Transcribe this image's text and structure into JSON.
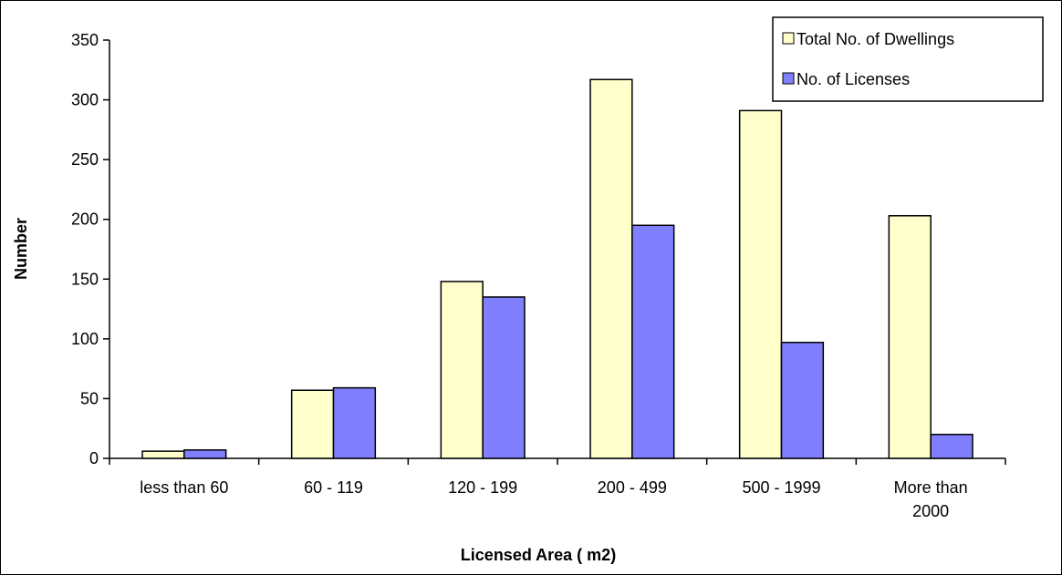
{
  "chart_data": {
    "type": "bar",
    "xlabel": "Licensed Area  ( m2)",
    "ylabel": "Number",
    "ylim": [
      0,
      350
    ],
    "yticks": [
      0,
      50,
      100,
      150,
      200,
      250,
      300,
      350
    ],
    "categories": [
      [
        "less than 60"
      ],
      [
        "60  - 119"
      ],
      [
        "120 - 199"
      ],
      [
        "200 - 499"
      ],
      [
        "500 - 1999"
      ],
      [
        "More than",
        "2000"
      ]
    ],
    "series": [
      {
        "name": "Total No. of  Dwellings",
        "values": [
          6,
          57,
          148,
          317,
          291,
          203
        ]
      },
      {
        "name": "No. of  Licenses",
        "values": [
          7,
          59,
          135,
          195,
          97,
          20
        ]
      }
    ],
    "legend_position": "top-right",
    "grid": false
  },
  "colors": {
    "series": [
      "#FFFFCC",
      "#8080FF"
    ],
    "axis": "#000000",
    "background": "#FFFFFF"
  }
}
